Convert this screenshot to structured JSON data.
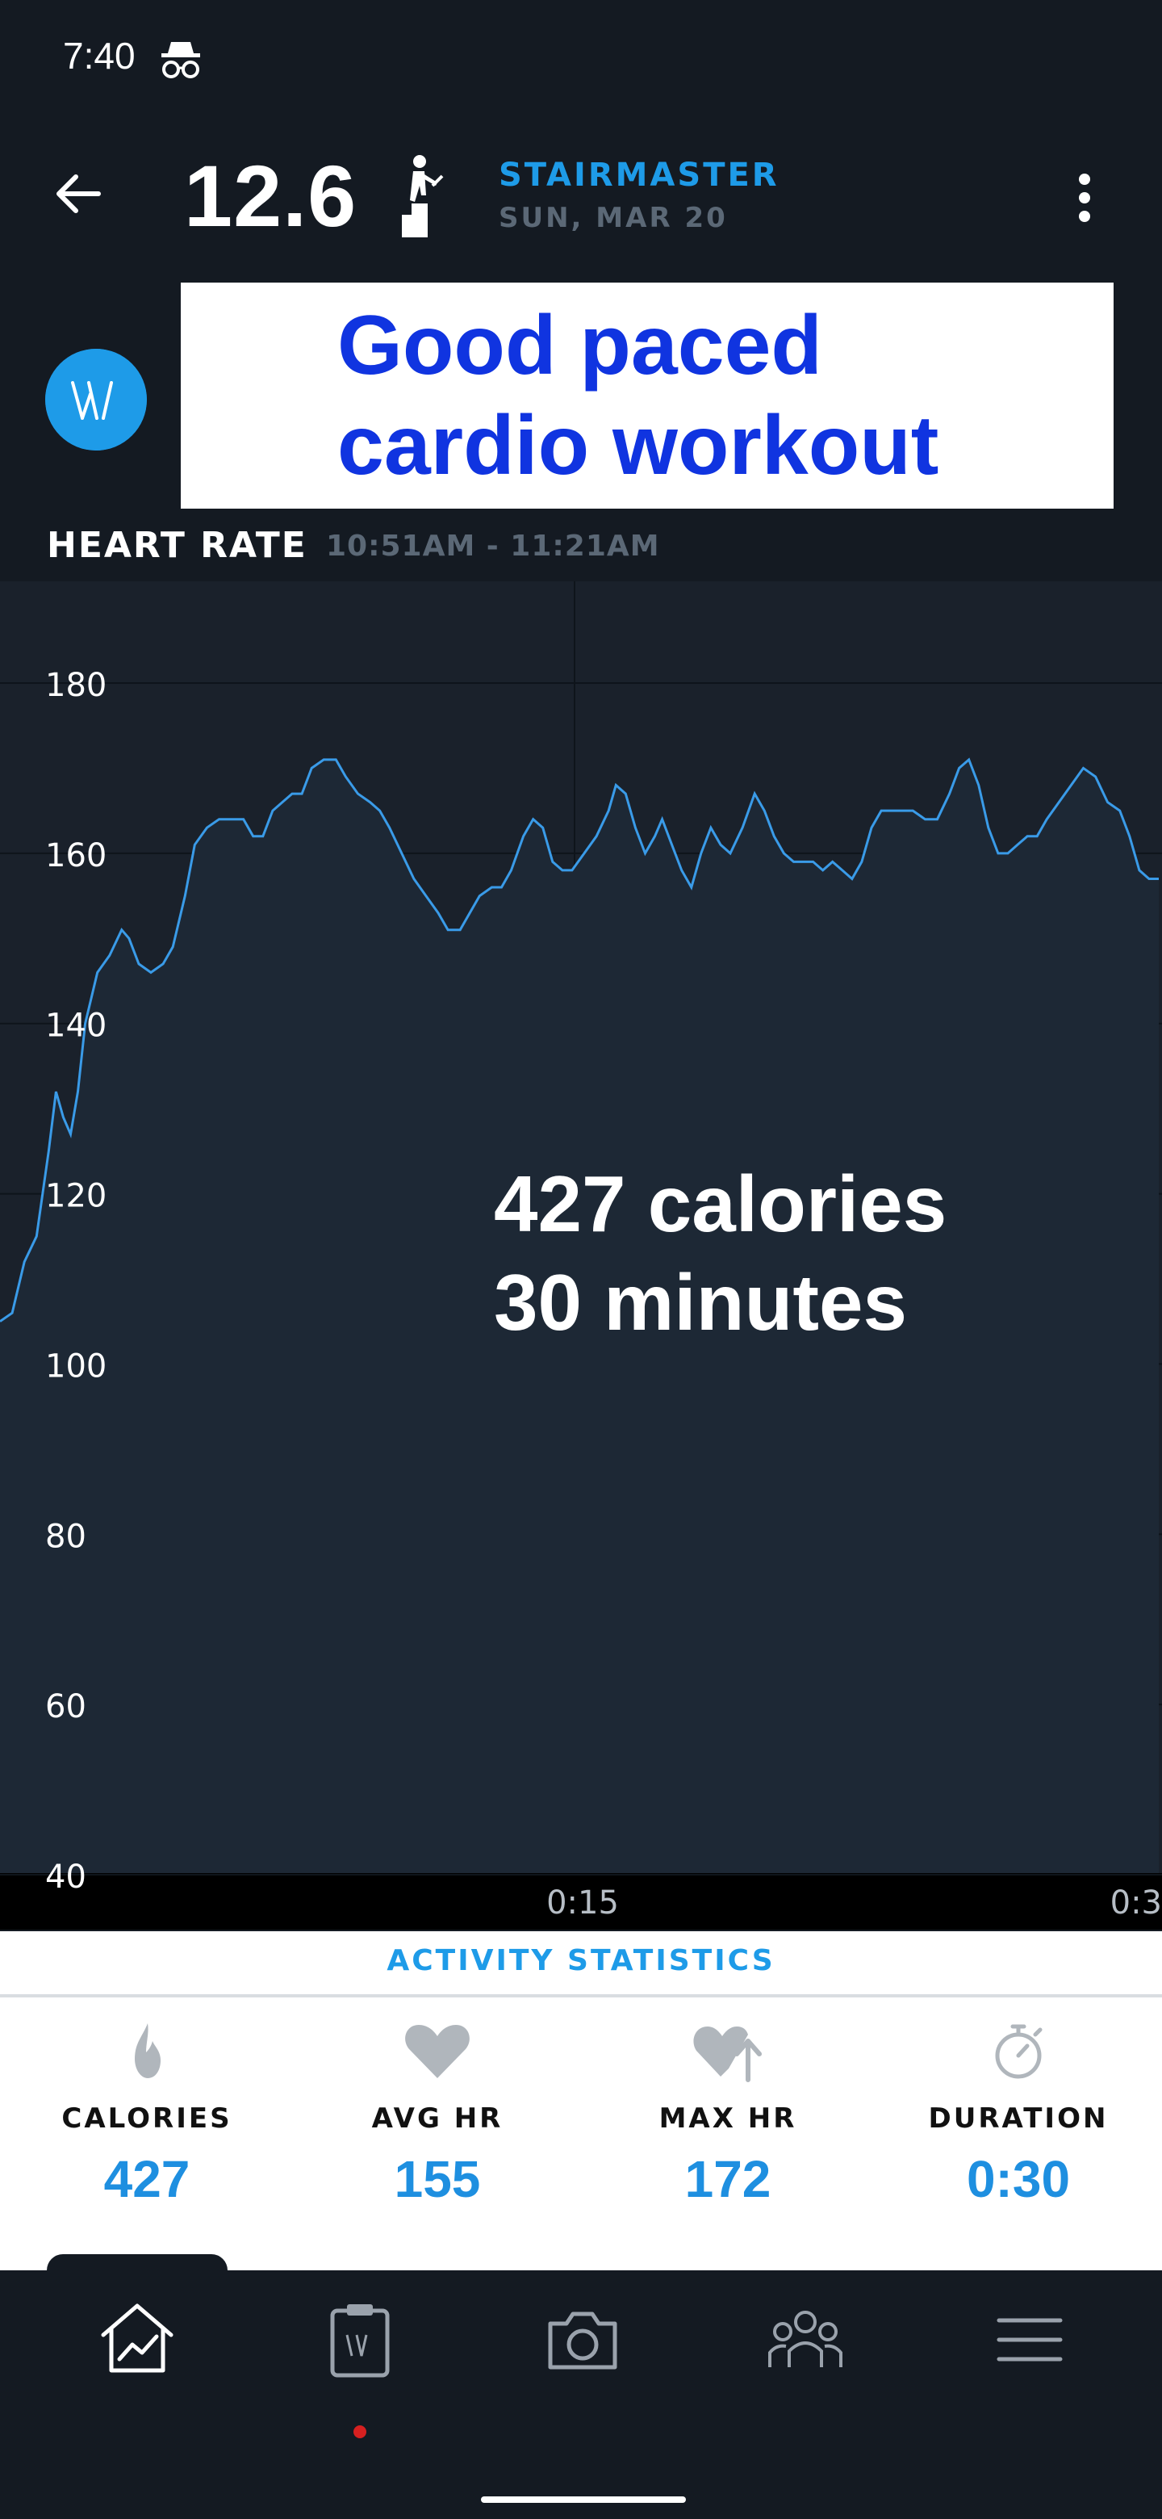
{
  "status_bar": {
    "time": "7:40",
    "icon": "incognito-icon"
  },
  "header": {
    "score": "12.6",
    "activity": "STAIRMASTER",
    "date": "SUN, MAR 20",
    "icons": [
      "back-arrow-icon",
      "stair-climber-icon",
      "more-vertical-icon"
    ]
  },
  "banner": {
    "logo_icon": "app-logo-icon",
    "line1": "Good paced",
    "line2": "cardio workout"
  },
  "heart_rate": {
    "label": "HEART RATE",
    "range": "10:51AM - 11:21AM"
  },
  "overlay": {
    "line1": "427 calories",
    "line2": "30 minutes"
  },
  "chart_data": {
    "type": "area",
    "ylim": [
      40,
      180
    ],
    "yticks": [
      "180",
      "160",
      "140",
      "120",
      "100",
      "80",
      "60",
      "40"
    ],
    "xticks": [
      "0:15",
      "0:3"
    ],
    "xlim_minutes": [
      0,
      30.5
    ],
    "grid": true,
    "series": [
      {
        "color": "#3a9be8",
        "points": [
          [
            0.0,
            105
          ],
          [
            0.5,
            106
          ],
          [
            1.0,
            112
          ],
          [
            1.5,
            115
          ],
          [
            2.0,
            125
          ],
          [
            2.3,
            132
          ],
          [
            2.6,
            129
          ],
          [
            2.9,
            127
          ],
          [
            3.2,
            132
          ],
          [
            3.5,
            140
          ],
          [
            4.0,
            146
          ],
          [
            4.5,
            148
          ],
          [
            5.0,
            151
          ],
          [
            5.3,
            150
          ],
          [
            5.7,
            147
          ],
          [
            6.2,
            146
          ],
          [
            6.7,
            147
          ],
          [
            7.1,
            149
          ],
          [
            7.6,
            155
          ],
          [
            8.0,
            161
          ],
          [
            8.5,
            163
          ],
          [
            9.0,
            164
          ],
          [
            9.5,
            164
          ],
          [
            10.0,
            164
          ],
          [
            10.4,
            162
          ],
          [
            10.8,
            162
          ],
          [
            11.2,
            165
          ],
          [
            11.6,
            166
          ],
          [
            12.0,
            167
          ],
          [
            12.4,
            167
          ],
          [
            12.8,
            170
          ],
          [
            13.3,
            171
          ],
          [
            13.8,
            171
          ],
          [
            14.2,
            169
          ],
          [
            14.7,
            167
          ],
          [
            15.2,
            166
          ],
          [
            15.6,
            165
          ],
          [
            16.0,
            163
          ],
          [
            16.5,
            160
          ],
          [
            17.0,
            157
          ],
          [
            17.5,
            155
          ],
          [
            18.0,
            153
          ],
          [
            18.4,
            151
          ],
          [
            18.9,
            151
          ],
          [
            19.3,
            153
          ],
          [
            19.7,
            155
          ],
          [
            20.2,
            156
          ],
          [
            20.6,
            156
          ],
          [
            21.0,
            158
          ],
          [
            21.5,
            162
          ],
          [
            21.9,
            164
          ],
          [
            22.3,
            163
          ],
          [
            22.7,
            159
          ],
          [
            23.1,
            158
          ],
          [
            23.5,
            158
          ],
          [
            24.0,
            160
          ],
          [
            24.5,
            162
          ],
          [
            25.0,
            165
          ],
          [
            25.3,
            168
          ],
          [
            25.7,
            167
          ],
          [
            26.1,
            163
          ],
          [
            26.5,
            160
          ],
          [
            26.9,
            162
          ],
          [
            27.2,
            164
          ],
          [
            27.6,
            161
          ],
          [
            28.0,
            158
          ],
          [
            28.4,
            156
          ],
          [
            28.8,
            160
          ],
          [
            29.2,
            163
          ],
          [
            29.6,
            161
          ],
          [
            30.0,
            160
          ],
          [
            30.5,
            163
          ],
          [
            31.0,
            167
          ],
          [
            31.4,
            165
          ],
          [
            31.8,
            162
          ],
          [
            32.2,
            160
          ],
          [
            32.6,
            159
          ],
          [
            33.0,
            159
          ],
          [
            33.4,
            159
          ],
          [
            33.8,
            158
          ],
          [
            34.2,
            159
          ],
          [
            34.6,
            158
          ],
          [
            35.0,
            157
          ],
          [
            35.4,
            159
          ],
          [
            35.8,
            163
          ],
          [
            36.2,
            165
          ],
          [
            36.6,
            165
          ],
          [
            37.0,
            165
          ],
          [
            37.5,
            165
          ],
          [
            38.0,
            164
          ],
          [
            38.5,
            164
          ],
          [
            39.0,
            167
          ],
          [
            39.4,
            170
          ],
          [
            39.8,
            171
          ],
          [
            40.2,
            168
          ],
          [
            40.6,
            163
          ],
          [
            41.0,
            160
          ],
          [
            41.4,
            160
          ],
          [
            41.8,
            161
          ],
          [
            42.2,
            162
          ],
          [
            42.6,
            162
          ],
          [
            43.0,
            164
          ],
          [
            43.5,
            166
          ],
          [
            44.0,
            168
          ],
          [
            44.5,
            170
          ],
          [
            45.0,
            169
          ],
          [
            45.5,
            166
          ],
          [
            46.0,
            165
          ],
          [
            46.4,
            162
          ],
          [
            46.8,
            158
          ],
          [
            47.2,
            157
          ],
          [
            47.6,
            157
          ]
        ]
      }
    ]
  },
  "stats": {
    "title": "ACTIVITY STATISTICS",
    "items": [
      {
        "label": "CALORIES",
        "value": "427",
        "icon": "flame-icon"
      },
      {
        "label": "AVG HR",
        "value": "155",
        "icon": "heart-icon"
      },
      {
        "label": "MAX HR",
        "value": "172",
        "icon": "heart-up-arrow-icon"
      },
      {
        "label": "DURATION",
        "value": "0:30",
        "icon": "stopwatch-icon"
      }
    ]
  },
  "nav": {
    "items": [
      "home-chart-icon",
      "log-clipboard-icon",
      "camera-icon",
      "community-icon",
      "menu-icon"
    ]
  }
}
